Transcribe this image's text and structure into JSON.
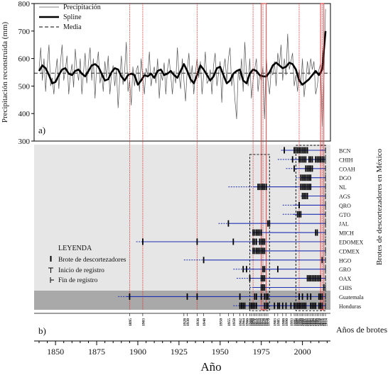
{
  "chart_data": [
    {
      "panel_label": "a)",
      "type": "line",
      "ylabel": "Precipitación reconstruida (mm)",
      "xlim": [
        1837,
        2017
      ],
      "ylim": [
        300,
        800
      ],
      "yticks": [
        300,
        400,
        500,
        600,
        700,
        800
      ],
      "grid": false,
      "legend_position": "top-left",
      "media_value": 547,
      "series": [
        {
          "name": "Precipitación",
          "style": "thin-solid",
          "color": "#555555",
          "x": [
            1840,
            1841,
            1842,
            1843,
            1844,
            1845,
            1846,
            1847,
            1848,
            1849,
            1850,
            1851,
            1852,
            1853,
            1854,
            1855,
            1856,
            1857,
            1858,
            1859,
            1860,
            1861,
            1862,
            1863,
            1864,
            1865,
            1866,
            1867,
            1868,
            1869,
            1870,
            1871,
            1872,
            1873,
            1874,
            1875,
            1876,
            1877,
            1878,
            1879,
            1880,
            1881,
            1882,
            1883,
            1884,
            1885,
            1886,
            1887,
            1888,
            1889,
            1890,
            1891,
            1892,
            1893,
            1894,
            1895,
            1896,
            1897,
            1898,
            1899,
            1900,
            1901,
            1902,
            1903,
            1904,
            1905,
            1906,
            1907,
            1908,
            1909,
            1910,
            1911,
            1912,
            1913,
            1914,
            1915,
            1916,
            1917,
            1918,
            1919,
            1920,
            1921,
            1922,
            1923,
            1924,
            1925,
            1926,
            1927,
            1928,
            1929,
            1930,
            1931,
            1932,
            1933,
            1934,
            1935,
            1936,
            1937,
            1938,
            1939,
            1940,
            1941,
            1942,
            1943,
            1944,
            1945,
            1946,
            1947,
            1948,
            1949,
            1950,
            1951,
            1952,
            1953,
            1954,
            1955,
            1956,
            1957,
            1958,
            1959,
            1960,
            1961,
            1962,
            1963,
            1964,
            1965,
            1966,
            1967,
            1968,
            1969,
            1970,
            1971,
            1972,
            1973,
            1974,
            1975,
            1976,
            1977,
            1978,
            1979,
            1980,
            1981,
            1982,
            1983,
            1984,
            1985,
            1986,
            1987,
            1988,
            1989,
            1990,
            1991,
            1992,
            1993,
            1994,
            1995,
            1996,
            1997,
            1998,
            1999,
            2000,
            2001,
            2002,
            2003,
            2004,
            2005,
            2006,
            2007,
            2008,
            2009,
            2010,
            2011,
            2012,
            2013,
            2014
          ],
          "y": [
            560,
            640,
            520,
            600,
            480,
            575,
            650,
            500,
            530,
            470,
            545,
            600,
            490,
            585,
            650,
            520,
            560,
            610,
            470,
            540,
            580,
            495,
            635,
            560,
            520,
            600,
            470,
            550,
            620,
            510,
            585,
            640,
            520,
            600,
            455,
            570,
            625,
            510,
            545,
            480,
            590,
            530,
            610,
            470,
            540,
            575,
            500,
            560,
            420,
            530,
            610,
            505,
            555,
            660,
            480,
            520,
            430,
            570,
            500,
            555,
            575,
            480,
            600,
            530,
            470,
            565,
            540,
            625,
            500,
            540,
            570,
            510,
            600,
            455,
            545,
            520,
            585,
            470,
            560,
            600,
            540,
            470,
            555,
            510,
            640,
            540,
            490,
            600,
            520,
            445,
            560,
            620,
            510,
            575,
            470,
            550,
            600,
            530,
            590,
            470,
            540,
            625,
            510,
            520,
            560,
            470,
            575,
            620,
            500,
            545,
            590,
            440,
            560,
            600,
            520,
            600,
            640,
            500,
            545,
            450,
            380,
            560,
            520,
            600,
            480,
            660,
            540,
            500,
            600,
            455,
            520,
            560,
            600,
            480,
            540,
            520,
            570,
            380,
            600,
            520,
            470,
            560,
            540,
            590,
            500,
            620,
            575,
            650,
            520,
            600,
            540,
            690,
            560,
            590,
            620,
            500,
            540,
            480,
            560,
            500,
            600,
            460,
            520,
            590,
            540,
            600,
            560,
            590,
            470,
            500,
            560,
            580,
            355,
            520,
            780
          ]
        },
        {
          "name": "Spline",
          "style": "thick-solid",
          "color": "#000000",
          "x": [
            1840,
            1842,
            1844,
            1846,
            1848,
            1850,
            1852,
            1854,
            1856,
            1858,
            1860,
            1862,
            1864,
            1866,
            1868,
            1870,
            1872,
            1874,
            1876,
            1878,
            1880,
            1882,
            1884,
            1886,
            1888,
            1890,
            1892,
            1894,
            1896,
            1898,
            1900,
            1902,
            1904,
            1906,
            1908,
            1910,
            1912,
            1914,
            1916,
            1918,
            1920,
            1922,
            1924,
            1926,
            1928,
            1930,
            1932,
            1934,
            1936,
            1938,
            1940,
            1942,
            1944,
            1946,
            1948,
            1950,
            1952,
            1954,
            1956,
            1958,
            1960,
            1962,
            1964,
            1966,
            1968,
            1970,
            1972,
            1974,
            1976,
            1978,
            1980,
            1982,
            1984,
            1986,
            1988,
            1990,
            1992,
            1994,
            1996,
            1998,
            2000,
            2002,
            2004,
            2006,
            2008,
            2010,
            2012,
            2014
          ],
          "y": [
            555,
            575,
            565,
            540,
            510,
            515,
            540,
            560,
            565,
            545,
            540,
            555,
            560,
            545,
            535,
            555,
            575,
            580,
            570,
            545,
            520,
            525,
            550,
            565,
            560,
            535,
            520,
            540,
            545,
            540,
            505,
            520,
            540,
            535,
            545,
            530,
            555,
            560,
            540,
            545,
            555,
            540,
            530,
            555,
            580,
            555,
            525,
            510,
            540,
            575,
            560,
            540,
            520,
            535,
            565,
            570,
            540,
            510,
            520,
            545,
            555,
            560,
            520,
            510,
            545,
            560,
            555,
            540,
            535,
            535,
            550,
            575,
            585,
            575,
            565,
            570,
            585,
            580,
            560,
            520,
            505,
            515,
            525,
            540,
            555,
            540,
            560,
            700
          ]
        },
        {
          "name": "Media",
          "style": "dashed",
          "color": "#000000"
        }
      ]
    },
    {
      "panel_label": "b)",
      "type": "scatter",
      "xlabel": "Año",
      "ylabel": "Brotes de descortezadores en México",
      "xticks": [
        1850,
        1875,
        1900,
        1925,
        1950,
        1975,
        2000
      ],
      "outbreak_axis_label": "Años de brotes",
      "outbreak_years": [
        "1895",
        "1903",
        "1928",
        "1930",
        "1936",
        "1940",
        "1950",
        "1955",
        "1958",
        "1962",
        "1964",
        "1966",
        "1968",
        "1969",
        "1970",
        "1971",
        "1972",
        "1973",
        "1974",
        "1975",
        "1976",
        "1977",
        "1978",
        "1979",
        "1983",
        "1985",
        "1988",
        "1990",
        "1993",
        "1995",
        "1996",
        "1997",
        "1998",
        "1999",
        "2000",
        "2001",
        "2002",
        "2003",
        "2004",
        "2005",
        "2006",
        "2007",
        "2008",
        "2009",
        "2010",
        "2011",
        "2012",
        "2013",
        "2014"
      ],
      "red_lines": [
        1895,
        1903,
        1936,
        1970,
        1976,
        1998,
        2012
      ],
      "red_boxes": [
        [
          1975,
          1978
        ],
        [
          2011,
          2013
        ]
      ],
      "dashed_boxes": [
        {
          "from": 1968,
          "to": 1980,
          "first_row": "CHIH",
          "last_row": "Honduras"
        },
        {
          "from": 1996,
          "to": 2014,
          "first_row": "BCN",
          "last_row": "Honduras"
        }
      ],
      "legend": {
        "title": "LEYENDA",
        "items": [
          "Brote de descortezadores",
          "Inicio de registro",
          "Fin de registro"
        ]
      },
      "rows": [
        {
          "label": "BCN",
          "shade": "light",
          "dash_from": 1987,
          "start": 1988,
          "end": 2014,
          "outbreaks": [
            1989,
            1995,
            1996,
            1997,
            1998,
            1999,
            2000,
            2001,
            2002,
            2003
          ]
        },
        {
          "label": "CHIH",
          "shade": "light",
          "dash_from": 1985,
          "start": 1993,
          "end": 2014,
          "outbreaks": [
            1994,
            1998,
            1999,
            2000,
            2001,
            2002,
            2004,
            2005,
            2006,
            2008,
            2009,
            2010,
            2011,
            2012,
            2013
          ]
        },
        {
          "label": "COAH",
          "shade": "light",
          "dash_from": 1990,
          "start": 1995,
          "end": 2014,
          "outbreaks": [
            1995,
            2002,
            2003,
            2004,
            2005,
            2006
          ]
        },
        {
          "label": "DGO",
          "shade": "light",
          "dash_from": 1996,
          "start": 1999,
          "end": 2014,
          "outbreaks": [
            1999,
            2000,
            2001,
            2002,
            2003,
            2004,
            2005
          ]
        },
        {
          "label": "NL",
          "shade": "light",
          "dash_from": 1955,
          "start": 1970,
          "end": 2014,
          "outbreaks": [
            1973,
            1974,
            1975,
            1976,
            1977,
            1978,
            1999,
            2000,
            2001,
            2002,
            2003,
            2004,
            2005
          ]
        },
        {
          "label": "AGS",
          "shade": "light",
          "dash_from": 1999,
          "start": 2000,
          "end": 2014,
          "outbreaks": [
            2000,
            2001,
            2002,
            2003
          ]
        },
        {
          "label": "QRO",
          "shade": "light",
          "dash_from": 1988,
          "start": 1995,
          "end": 2014,
          "outbreaks": [
            1998
          ]
        },
        {
          "label": "GTO",
          "shade": "light",
          "dash_from": 1988,
          "start": 1994,
          "end": 2014,
          "outbreaks": [
            1997,
            1998,
            1999
          ]
        },
        {
          "label": "JAL",
          "shade": "light",
          "dash_from": 1949,
          "start": 1955,
          "end": 2014,
          "outbreaks": [
            1955,
            1979,
            1980
          ]
        },
        {
          "label": "MICH",
          "shade": "light",
          "dash_from": 1968,
          "start": 1970,
          "end": 2014,
          "outbreaks": [
            1970,
            1971,
            1972,
            1973,
            1974,
            1975,
            2008,
            2009
          ]
        },
        {
          "label": "EDOMEX",
          "shade": "light",
          "dash_from": 1899,
          "start": 1902,
          "end": 2014,
          "outbreaks": [
            1903,
            1936,
            1958,
            1970,
            1971,
            1972,
            1974,
            1975,
            1976,
            1977
          ]
        },
        {
          "label": "CDMEX",
          "shade": "light",
          "dash_from": 1968,
          "start": 1970,
          "end": 2014,
          "outbreaks": [
            1970,
            1971,
            1972,
            1973,
            1974,
            1975,
            1976,
            1977
          ]
        },
        {
          "label": "HGO",
          "shade": "light",
          "dash_from": 1928,
          "start": 1940,
          "end": 2014,
          "outbreaks": [
            1940,
            2012
          ]
        },
        {
          "label": "GRO",
          "shade": "light",
          "dash_from": 1958,
          "start": 1964,
          "end": 2014,
          "outbreaks": [
            1964,
            1966,
            1976,
            1977,
            1985
          ]
        },
        {
          "label": "OAX",
          "shade": "light",
          "dash_from": 1960,
          "start": 1968,
          "end": 2014,
          "outbreaks": [
            1968,
            1975,
            1976,
            1977,
            2003,
            2004,
            2005,
            2006,
            2007,
            2008,
            2009,
            2010,
            2011
          ]
        },
        {
          "label": "CHIS",
          "shade": "light",
          "dash_from": 1968,
          "start": 1970,
          "end": 2014,
          "outbreaks": [
            1975,
            1976,
            1977,
            2013
          ]
        },
        {
          "label": "Guatemala",
          "shade": "dark",
          "dash_from": 1888,
          "start": 1893,
          "end": 2014,
          "outbreaks": [
            1895,
            1930,
            1936,
            1962,
            1971,
            1972,
            1975,
            1977,
            1978,
            1979,
            1998,
            2000,
            2003,
            2005,
            2010,
            2011,
            2012
          ]
        },
        {
          "label": "Honduras",
          "shade": "dark",
          "dash_from": 1958,
          "start": 1962,
          "end": 2014,
          "outbreaks": [
            1962,
            1963,
            1964,
            1965,
            1968,
            1969,
            1970,
            1971,
            1972,
            1977,
            1978,
            1979,
            1983,
            1985,
            1986,
            1988,
            1990,
            1993,
            1995,
            1996,
            1997,
            1998,
            1999,
            2000,
            2001,
            2002,
            2005,
            2006,
            2007,
            2008,
            2010,
            2011,
            2012
          ]
        }
      ]
    }
  ]
}
